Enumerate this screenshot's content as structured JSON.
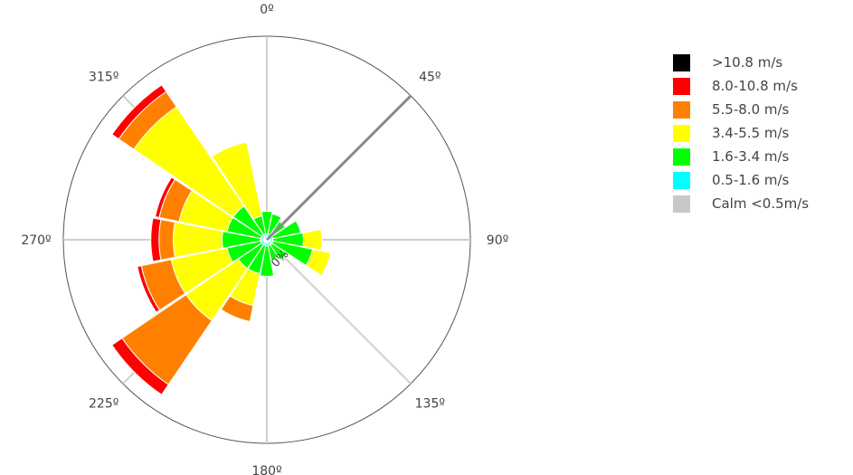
{
  "chart_data": {
    "type": "windrose",
    "title": "",
    "radial_unit_label": "0%",
    "direction_labels": [
      "0º",
      "45º",
      "90º",
      "135º",
      "180º",
      "225º",
      "270º",
      "315º"
    ],
    "direction_angles": [
      0,
      45,
      90,
      135,
      180,
      225,
      270,
      315
    ],
    "sector_directions_deg": [
      0,
      22.5,
      45,
      67.5,
      90,
      112.5,
      135,
      157.5,
      180,
      202.5,
      225,
      247.5,
      270,
      292.5,
      315,
      337.5
    ],
    "radial_max": 100,
    "series": [
      {
        "name": "Calm <0.5m/s",
        "color": "#c8c8c8",
        "values": [
          1,
          1,
          1,
          1,
          1,
          1,
          1,
          1,
          1,
          1,
          1,
          1,
          1,
          1,
          1,
          1
        ]
      },
      {
        "name": "0.5-1.6 m/s",
        "color": "#00ffff",
        "values": [
          2,
          2,
          2,
          2,
          2,
          2,
          2,
          2,
          2,
          2,
          2,
          2,
          2,
          2,
          2,
          2
        ]
      },
      {
        "name": "1.6-3.4 m/s",
        "color": "#00ff00",
        "values": [
          11,
          10,
          8,
          14,
          15,
          20,
          9,
          7,
          15,
          14,
          14,
          17,
          19,
          17,
          17,
          9
        ]
      },
      {
        "name": "3.4-5.5 m/s",
        "color": "#ffff00",
        "values": [
          0,
          0,
          0,
          0,
          9,
          9,
          0,
          0,
          0,
          16,
          31,
          28,
          24,
          24,
          59,
          37
        ]
      },
      {
        "name": "5.5-8.0 m/s",
        "color": "#ff8000",
        "values": [
          0,
          0,
          0,
          0,
          0,
          0,
          0,
          0,
          0,
          8,
          38,
          15,
          7,
          10,
          9,
          0
        ]
      },
      {
        "name": "8.0-10.8 m/s",
        "color": "#ff0000",
        "values": [
          0,
          0,
          0,
          0,
          0,
          0,
          0,
          0,
          0,
          0,
          6,
          2,
          4,
          2,
          4,
          0
        ]
      },
      {
        "name": ">10.8 m/s",
        "color": "#000000",
        "values": [
          0,
          0,
          0,
          0,
          0,
          0,
          0,
          0,
          0,
          0,
          0,
          0,
          0,
          0,
          0,
          0
        ]
      }
    ],
    "legend_placement": "right",
    "grid": true
  },
  "legend": {
    "items": [
      {
        "label": ">10.8 m/s",
        "color": "#000000"
      },
      {
        "label": "8.0-10.8 m/s",
        "color": "#ff0000"
      },
      {
        "label": "5.5-8.0 m/s",
        "color": "#ff8000"
      },
      {
        "label": "3.4-5.5 m/s",
        "color": "#ffff00"
      },
      {
        "label": "1.6-3.4 m/s",
        "color": "#00ff00"
      },
      {
        "label": "0.5-1.6 m/s",
        "color": "#00ffff"
      },
      {
        "label": "Calm <0.5m/s",
        "color": "#c8c8c8"
      }
    ]
  }
}
